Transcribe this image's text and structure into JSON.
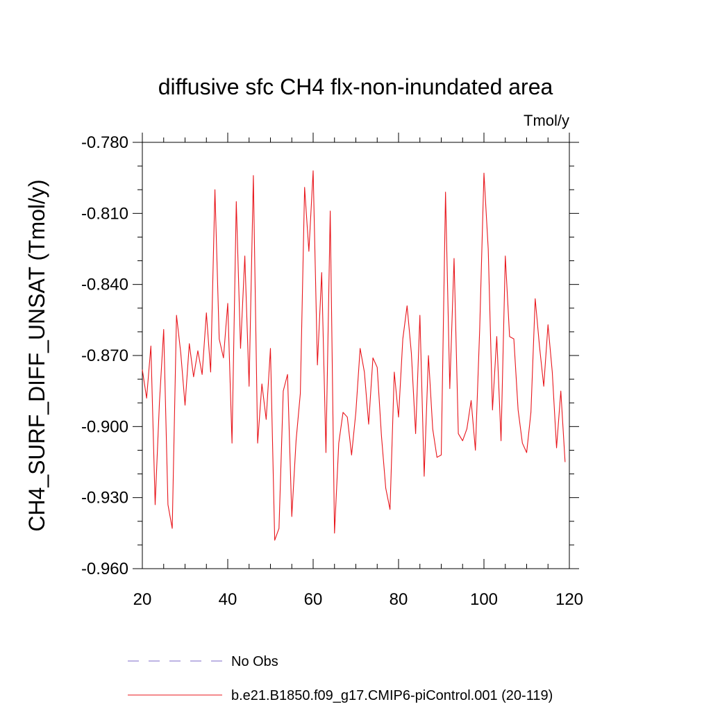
{
  "chart_data": {
    "type": "line",
    "title": "diffusive sfc CH4 flx-non-inundated area",
    "units": "Tmol/y",
    "ylabel": "CH4_SURF_DIFF_UNSAT  (Tmol/y)",
    "xlabel": "",
    "xlim": [
      20,
      120
    ],
    "ylim": [
      -0.96,
      -0.78
    ],
    "xticks": [
      20,
      40,
      60,
      80,
      100,
      120
    ],
    "xtick_labels": [
      "20",
      "40",
      "60",
      "80",
      "100",
      "120"
    ],
    "yticks": [
      -0.96,
      -0.93,
      -0.9,
      -0.87,
      -0.84,
      -0.81,
      -0.78
    ],
    "ytick_labels": [
      "-0.960",
      "-0.930",
      "-0.900",
      "-0.870",
      "-0.840",
      "-0.810",
      "-0.780"
    ],
    "grid": false,
    "legend_position": "bottom",
    "legend": [
      {
        "label": "No Obs",
        "color": "#7b68c8",
        "dash": "dashed"
      },
      {
        "label": "b.e21.B1850.f09_g17.CMIP6-piControl.001 (20-119)",
        "color": "#e8151b",
        "dash": "solid"
      }
    ],
    "series": [
      {
        "name": "b.e21.B1850.f09_g17.CMIP6-piControl.001 (20-119)",
        "color": "#e8151b",
        "x": [
          20,
          21,
          22,
          23,
          24,
          25,
          26,
          27,
          28,
          29,
          30,
          31,
          32,
          33,
          34,
          35,
          36,
          37,
          38,
          39,
          40,
          41,
          42,
          43,
          44,
          45,
          46,
          47,
          48,
          49,
          50,
          51,
          52,
          53,
          54,
          55,
          56,
          57,
          58,
          59,
          60,
          61,
          62,
          63,
          64,
          65,
          66,
          67,
          68,
          69,
          70,
          71,
          72,
          73,
          74,
          75,
          76,
          77,
          78,
          79,
          80,
          81,
          82,
          83,
          84,
          85,
          86,
          87,
          88,
          89,
          90,
          91,
          92,
          93,
          94,
          95,
          96,
          97,
          98,
          99,
          100,
          101,
          102,
          103,
          104,
          105,
          106,
          107,
          108,
          109,
          110,
          111,
          112,
          113,
          114,
          115,
          116,
          117,
          118,
          119
        ],
        "y": [
          -0.876,
          -0.888,
          -0.866,
          -0.933,
          -0.89,
          -0.859,
          -0.933,
          -0.943,
          -0.853,
          -0.869,
          -0.891,
          -0.865,
          -0.879,
          -0.868,
          -0.878,
          -0.852,
          -0.877,
          -0.8,
          -0.863,
          -0.871,
          -0.848,
          -0.907,
          -0.805,
          -0.867,
          -0.828,
          -0.883,
          -0.794,
          -0.907,
          -0.882,
          -0.897,
          -0.867,
          -0.948,
          -0.943,
          -0.885,
          -0.878,
          -0.938,
          -0.906,
          -0.886,
          -0.799,
          -0.826,
          -0.792,
          -0.874,
          -0.835,
          -0.911,
          -0.809,
          -0.945,
          -0.907,
          -0.894,
          -0.896,
          -0.912,
          -0.894,
          -0.867,
          -0.877,
          -0.899,
          -0.871,
          -0.875,
          -0.904,
          -0.926,
          -0.935,
          -0.877,
          -0.896,
          -0.863,
          -0.849,
          -0.869,
          -0.903,
          -0.853,
          -0.921,
          -0.87,
          -0.901,
          -0.913,
          -0.912,
          -0.801,
          -0.884,
          -0.829,
          -0.903,
          -0.906,
          -0.901,
          -0.889,
          -0.91,
          -0.859,
          -0.793,
          -0.825,
          -0.893,
          -0.862,
          -0.906,
          -0.828,
          -0.862,
          -0.863,
          -0.893,
          -0.907,
          -0.911,
          -0.894,
          -0.846,
          -0.866,
          -0.883,
          -0.857,
          -0.877,
          -0.909,
          -0.885,
          -0.915
        ]
      }
    ]
  }
}
